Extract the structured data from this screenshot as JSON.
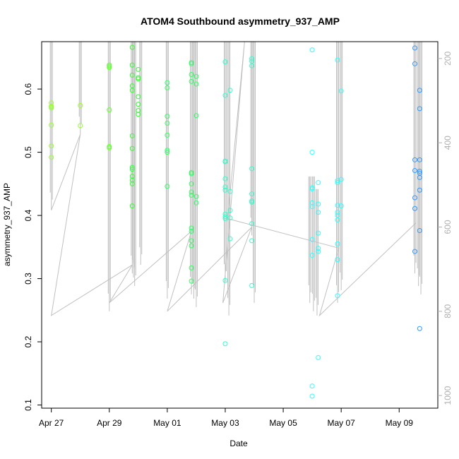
{
  "chart_data": {
    "type": "scatter",
    "title": "ATOM4 Southbound asymmetry_937_AMP",
    "xlabel": "Date",
    "ylabel": "asymmetry_937_AMP",
    "x_ticks": [
      "Apr 27",
      "Apr 29",
      "May 01",
      "May 03",
      "May 05",
      "May 07",
      "May 09"
    ],
    "y_ticks": [
      "0.1",
      "0.2",
      "0.3",
      "0.4",
      "0.5",
      "0.6"
    ],
    "y2_ticks": [
      "200",
      "400",
      "600",
      "800",
      "1000"
    ],
    "xlim": [
      "2023-04-26 16:00",
      "2023-05-10 08:00"
    ],
    "ylim": [
      0.095,
      0.675
    ],
    "y2lim": [
      1030,
      160
    ],
    "colors": {
      "apr27": "#99ff33",
      "apr29": "#66ff33",
      "apr30": "#33ff33",
      "may01": "#33ff66",
      "may02": "#33ff66",
      "may03": "#33ffcc",
      "may04": "#33ffcc",
      "may06": "#33ffff",
      "may07": "#33ffff",
      "may09": "#3399ff",
      "line": "#c0c0c0"
    },
    "series": [
      {
        "color_key": "apr27",
        "x": "2023-04-27 00:00",
        "y": [
          0.578,
          0.573,
          0.57,
          0.572,
          0.543,
          0.51,
          0.492
        ]
      },
      {
        "color_key": "apr27",
        "x": "2023-04-28 00:00",
        "y": [
          0.574,
          0.542
        ]
      },
      {
        "color_key": "apr29",
        "x": "2023-04-29 00:00",
        "y": [
          0.638,
          0.636,
          0.634,
          0.567,
          0.509,
          0.507
        ]
      },
      {
        "color_key": "apr30",
        "x": "2023-04-29 19:00",
        "y": [
          0.666,
          0.638,
          0.622,
          0.605,
          0.598,
          0.526,
          0.506,
          0.476,
          0.473,
          0.462,
          0.456,
          0.45,
          0.415
        ]
      },
      {
        "color_key": "apr30",
        "x": "2023-04-30 00:00",
        "y": [
          0.631,
          0.618,
          0.616,
          0.588,
          0.576,
          0.566,
          0.56
        ]
      },
      {
        "color_key": "may01",
        "x": "2023-05-01 00:00",
        "y": [
          0.61,
          0.602,
          0.557,
          0.546,
          0.527,
          0.503,
          0.5,
          0.446
        ]
      },
      {
        "color_key": "may02",
        "x": "2023-05-01 20:00",
        "y": [
          0.642,
          0.64,
          0.623,
          0.612,
          0.468,
          0.466,
          0.45,
          0.437,
          0.432,
          0.38,
          0.375,
          0.36,
          0.352,
          0.317,
          0.296
        ]
      },
      {
        "color_key": "may02",
        "x": "2023-05-02 00:00",
        "y": [
          0.62,
          0.608,
          0.558,
          0.43,
          0.42
        ]
      },
      {
        "color_key": "may03",
        "x": "2023-05-03 00:00",
        "y": [
          0.643,
          0.59,
          0.486,
          0.485,
          0.458,
          0.445,
          0.44,
          0.402,
          0.398,
          0.395,
          0.297,
          0.197
        ]
      },
      {
        "color_key": "may03",
        "x": "2023-05-03 04:00",
        "y": [
          0.598,
          0.438,
          0.408,
          0.396,
          0.363
        ]
      },
      {
        "color_key": "may04",
        "x": "2023-05-03 22:00",
        "y": [
          0.648,
          0.644,
          0.637,
          0.474,
          0.434,
          0.423,
          0.421,
          0.387,
          0.36,
          0.289
        ]
      },
      {
        "color_key": "may06",
        "x": "2023-05-06 00:00",
        "y": [
          0.662,
          0.5,
          0.444,
          0.442,
          0.42,
          0.414,
          0.362,
          0.337,
          0.13,
          0.114
        ]
      },
      {
        "color_key": "may06",
        "x": "2023-05-06 05:00",
        "y": [
          0.452,
          0.418,
          0.405,
          0.372,
          0.348,
          0.343,
          0.175
        ]
      },
      {
        "color_key": "may07",
        "x": "2023-05-06 21:00",
        "y": [
          0.646,
          0.455,
          0.452,
          0.416,
          0.405,
          0.4,
          0.393,
          0.355,
          0.33,
          0.273
        ]
      },
      {
        "color_key": "may07",
        "x": "2023-05-07 00:00",
        "y": [
          0.597,
          0.457,
          0.415
        ]
      },
      {
        "color_key": "may09",
        "x": "2023-05-09 13:00",
        "y": [
          0.665,
          0.64,
          0.488,
          0.471,
          0.428,
          0.411,
          0.343
        ]
      },
      {
        "color_key": "may09",
        "x": "2023-05-09 17:00",
        "y": [
          0.598,
          0.569,
          0.488,
          0.47,
          0.467,
          0.46,
          0.44,
          0.376,
          0.221
        ]
      }
    ],
    "line_columns": [
      {
        "x": "2023-04-27 00:00",
        "y2": [
          160,
          560
        ]
      },
      {
        "x": "2023-04-28 00:00",
        "y2": [
          160,
          380
        ]
      },
      {
        "x": "2023-04-29 00:00",
        "y2": [
          160,
          800
        ]
      },
      {
        "x": "2023-04-29 19:00",
        "y2": [
          160,
          710
        ]
      },
      {
        "x": "2023-04-29 20:00",
        "y2": [
          160,
          720
        ]
      },
      {
        "x": "2023-04-29 21:00",
        "y2": [
          160,
          740
        ]
      },
      {
        "x": "2023-04-30 02:00",
        "y2": [
          160,
          690
        ]
      },
      {
        "x": "2023-05-01 00:00",
        "y2": [
          160,
          770
        ]
      },
      {
        "x": "2023-05-01 20:00",
        "y2": [
          160,
          760
        ]
      },
      {
        "x": "2023-05-01 22:00",
        "y2": [
          160,
          770
        ]
      },
      {
        "x": "2023-05-02 00:00",
        "y2": [
          160,
          790
        ]
      },
      {
        "x": "2023-05-03 00:00",
        "y2": [
          160,
          730
        ]
      },
      {
        "x": "2023-05-03 03:00",
        "y2": [
          160,
          810
        ]
      },
      {
        "x": "2023-05-03 22:00",
        "y2": [
          160,
          620
        ]
      },
      {
        "x": "2023-05-04 00:00",
        "y2": [
          160,
          780
        ]
      },
      {
        "x": "2023-05-05 22:00",
        "y2": [
          480,
          780
        ]
      },
      {
        "x": "2023-05-06 01:00",
        "y2": [
          480,
          800
        ]
      },
      {
        "x": "2023-05-06 04:00",
        "y2": [
          510,
          810
        ]
      },
      {
        "x": "2023-05-06 21:00",
        "y2": [
          160,
          780
        ]
      },
      {
        "x": "2023-05-07 00:00",
        "y2": [
          160,
          750
        ]
      },
      {
        "x": "2023-05-09 13:00",
        "y2": [
          160,
          710
        ]
      },
      {
        "x": "2023-05-09 16:00",
        "y2": [
          160,
          740
        ]
      },
      {
        "x": "2023-05-09 18:00",
        "y2": [
          160,
          760
        ]
      }
    ],
    "line_path": [
      {
        "x": "2023-04-27 00:00",
        "y2": 560
      },
      {
        "x": "2023-04-28 00:00",
        "y2": 380
      },
      {
        "x": "2023-04-27 00:00",
        "y2": 810
      },
      {
        "x": "2023-04-29 19:00",
        "y2": 690
      },
      {
        "x": "2023-04-29 00:00",
        "y2": 780
      },
      {
        "x": "2023-05-01 20:00",
        "y2": 610
      },
      {
        "x": "2023-05-01 00:00",
        "y2": 800
      },
      {
        "x": "2023-05-03 22:00",
        "y2": 600
      },
      {
        "x": "2023-05-02 22:00",
        "y2": 780
      },
      {
        "x": "2023-05-03 16:00",
        "y2": 160
      },
      {
        "x": "2023-05-03 02:00",
        "y2": 580
      },
      {
        "x": "2023-05-06 22:00",
        "y2": 650
      },
      {
        "x": "2023-05-06 06:00",
        "y2": 810
      },
      {
        "x": "2023-05-09 14:00",
        "y2": 590
      }
    ]
  }
}
